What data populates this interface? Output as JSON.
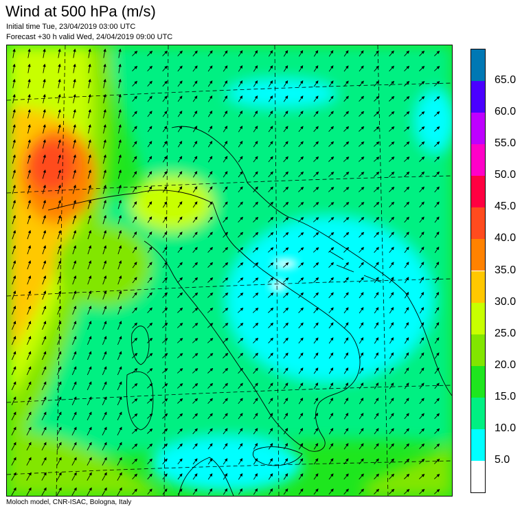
{
  "header": {
    "title": "Wind at 500 hPa (m/s)",
    "initial_time": "Initial time  Tue, 23/04/2019 03:00 UTC",
    "forecast": "Forecast +30 h valid  Wed, 24/04/2019 09:00 UTC"
  },
  "footer": {
    "credit": "Moloch model, CNR-ISAC, Bologna, Italy"
  },
  "legend": {
    "unit": "m/s",
    "bins": [
      {
        "color": "#0078b4"
      },
      {
        "color": "#4a00ff",
        "label": "65.0"
      },
      {
        "color": "#be00ff",
        "label": "60.0"
      },
      {
        "color": "#ff00c8",
        "label": "55.0"
      },
      {
        "color": "#ff0041",
        "label": "50.0"
      },
      {
        "color": "#ff4b1e",
        "label": "45.0"
      },
      {
        "color": "#ff8200",
        "label": "40.0"
      },
      {
        "color": "#ffc800",
        "label": "35.0"
      },
      {
        "color": "#c8ff00",
        "label": "30.0"
      },
      {
        "color": "#82e600",
        "label": "25.0"
      },
      {
        "color": "#1ee61e",
        "label": "20.0"
      },
      {
        "color": "#00f082",
        "label": "15.0"
      },
      {
        "color": "#00ffff",
        "label": "10.0"
      },
      {
        "color": "#ffffff",
        "label": "5.0"
      }
    ]
  },
  "map": {
    "field": "wind speed at 500 hPa",
    "base_color": "#1ee61e",
    "wind_arrows": "predominantly from south-west"
  }
}
